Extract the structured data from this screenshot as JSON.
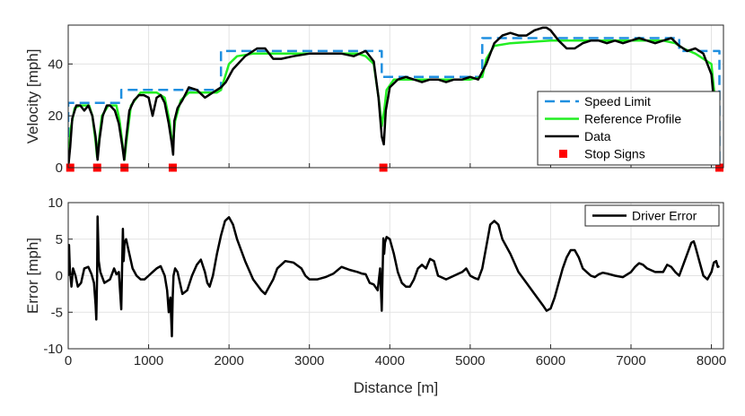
{
  "chart_data": [
    {
      "type": "line",
      "ylabel": "Velocity [mph]",
      "xlabel": "",
      "xlim": [
        0,
        8150
      ],
      "ylim": [
        0,
        55
      ],
      "xticks": [],
      "yticks": [
        0,
        20,
        40
      ],
      "grid": true,
      "legend_position": "bottom-right",
      "legend": [
        "Speed Limit",
        "Reference Profile",
        "Data",
        "Stop Signs"
      ],
      "series": [
        {
          "name": "Speed Limit",
          "color": "#1f8fe0",
          "style": "dashed",
          "x": [
            0,
            0,
            360,
            360,
            660,
            660,
            1300,
            1300,
            1900,
            1900,
            3900,
            3900,
            5150,
            5150,
            7600,
            7600,
            8100,
            8100
          ],
          "y": [
            0,
            25,
            25,
            25,
            25,
            30,
            30,
            30,
            30,
            45,
            45,
            35,
            35,
            50,
            50,
            45,
            45,
            0
          ]
        },
        {
          "name": "Reference Profile",
          "color": "#22ee22",
          "style": "solid",
          "x": [
            0,
            30,
            80,
            150,
            260,
            300,
            340,
            360,
            380,
            420,
            500,
            600,
            640,
            680,
            700,
            720,
            780,
            900,
            1100,
            1200,
            1260,
            1300,
            1330,
            1400,
            1500,
            1700,
            1850,
            1900,
            1950,
            2000,
            2100,
            2300,
            2600,
            3000,
            3400,
            3600,
            3700,
            3800,
            3870,
            3900,
            3930,
            3960,
            4050,
            4300,
            4600,
            5000,
            5150,
            5200,
            5300,
            5500,
            6000,
            6500,
            7000,
            7400,
            7550,
            7650,
            7800,
            8000,
            8050,
            8100
          ],
          "y": [
            0,
            15,
            23,
            24,
            24,
            20,
            10,
            4,
            10,
            20,
            24,
            24,
            18,
            8,
            3,
            9,
            24,
            29,
            29,
            27,
            18,
            8,
            18,
            26,
            29,
            29,
            29,
            30,
            35,
            40,
            43,
            44,
            44,
            44,
            44,
            44,
            43,
            40,
            25,
            16,
            22,
            30,
            34,
            34,
            34,
            34,
            35,
            42,
            47,
            48,
            49,
            49,
            49,
            49,
            48,
            46,
            44,
            40,
            25,
            0
          ]
        },
        {
          "name": "Data",
          "color": "#000000",
          "style": "solid",
          "x": [
            0,
            25,
            50,
            100,
            150,
            200,
            250,
            300,
            340,
            365,
            390,
            430,
            480,
            520,
            580,
            630,
            670,
            695,
            720,
            760,
            820,
            880,
            940,
            1000,
            1050,
            1100,
            1150,
            1200,
            1250,
            1290,
            1305,
            1320,
            1360,
            1420,
            1500,
            1600,
            1700,
            1800,
            1900,
            1960,
            2050,
            2200,
            2350,
            2450,
            2550,
            2650,
            2800,
            3000,
            3200,
            3400,
            3550,
            3700,
            3800,
            3860,
            3900,
            3925,
            3950,
            4000,
            4100,
            4200,
            4300,
            4400,
            4500,
            4600,
            4700,
            4800,
            4900,
            5000,
            5100,
            5200,
            5300,
            5400,
            5500,
            5600,
            5700,
            5800,
            5900,
            5950,
            6000,
            6100,
            6200,
            6300,
            6400,
            6500,
            6600,
            6700,
            6800,
            6900,
            7000,
            7100,
            7200,
            7300,
            7400,
            7500,
            7600,
            7700,
            7800,
            7900,
            8000,
            8050,
            8100
          ],
          "y": [
            0,
            8,
            19,
            24,
            24,
            22,
            24,
            20,
            12,
            3,
            11,
            20,
            24,
            24,
            22,
            17,
            9,
            3,
            11,
            22,
            26,
            28,
            28,
            27,
            20,
            27,
            28,
            25,
            17,
            9,
            5,
            18,
            23,
            26,
            31,
            30,
            27,
            29,
            31,
            33,
            38,
            43,
            46,
            46,
            42,
            42,
            43,
            44,
            44,
            44,
            43,
            45,
            41,
            27,
            12,
            9,
            22,
            31,
            34,
            35,
            34,
            33,
            34,
            34,
            33,
            34,
            34,
            35,
            34,
            40,
            48,
            51,
            52,
            51,
            51,
            53,
            54,
            54,
            53,
            49,
            46,
            46,
            48,
            49,
            49,
            48,
            49,
            48,
            49,
            50,
            49,
            48,
            49,
            50,
            47,
            45,
            46,
            44,
            36,
            20,
            0
          ]
        }
      ],
      "stop_signs": [
        25,
        360,
        700,
        1300,
        3920,
        8100
      ],
      "stop_sign_value": 0
    },
    {
      "type": "line",
      "xlabel": "Distance [m]",
      "ylabel": "Error [mph]",
      "xlim": [
        0,
        8150
      ],
      "ylim": [
        -10,
        10
      ],
      "xticks": [
        0,
        1000,
        2000,
        3000,
        4000,
        5000,
        6000,
        7000,
        8000
      ],
      "yticks": [
        -10,
        -5,
        0,
        5,
        10
      ],
      "grid": true,
      "legend_position": "top-right",
      "legend": [
        "Driver Error"
      ],
      "series": [
        {
          "name": "Driver Error",
          "color": "#000000",
          "style": "solid",
          "x": [
            0,
            10,
            20,
            40,
            60,
            90,
            120,
            160,
            200,
            250,
            290,
            320,
            340,
            350,
            360,
            365,
            380,
            400,
            450,
            520,
            570,
            600,
            630,
            660,
            680,
            690,
            700,
            720,
            760,
            800,
            850,
            900,
            950,
            1000,
            1050,
            1100,
            1150,
            1200,
            1230,
            1250,
            1270,
            1290,
            1300,
            1310,
            1330,
            1360,
            1420,
            1480,
            1540,
            1600,
            1650,
            1700,
            1730,
            1760,
            1800,
            1850,
            1900,
            1950,
            2000,
            2050,
            2100,
            2200,
            2300,
            2400,
            2450,
            2500,
            2550,
            2600,
            2700,
            2800,
            2900,
            2950,
            3000,
            3100,
            3200,
            3300,
            3400,
            3500,
            3600,
            3650,
            3700,
            3750,
            3800,
            3850,
            3880,
            3900,
            3920,
            3930,
            3940,
            3960,
            4000,
            4050,
            4100,
            4150,
            4200,
            4250,
            4300,
            4350,
            4400,
            4450,
            4500,
            4550,
            4600,
            4700,
            4800,
            4900,
            4950,
            5000,
            5050,
            5100,
            5150,
            5200,
            5250,
            5300,
            5350,
            5400,
            5500,
            5600,
            5700,
            5800,
            5900,
            5950,
            6000,
            6050,
            6100,
            6150,
            6200,
            6250,
            6300,
            6350,
            6400,
            6450,
            6500,
            6550,
            6600,
            6650,
            6700,
            6800,
            6900,
            7000,
            7050,
            7100,
            7150,
            7200,
            7300,
            7400,
            7450,
            7500,
            7550,
            7600,
            7650,
            7700,
            7750,
            7780,
            7800,
            7850,
            7900,
            7950,
            8000,
            8030,
            8060,
            8080,
            8100
          ],
          "y": [
            0,
            4.2,
            1,
            -1.5,
            1,
            0,
            -1.5,
            -1,
            1,
            1.2,
            0.2,
            -1,
            -4,
            -6,
            0,
            8.1,
            2,
            0.5,
            -1,
            -0.5,
            1,
            0.2,
            0.5,
            -4.6,
            6.4,
            2,
            4.5,
            5,
            3,
            1,
            0,
            -0.5,
            -0.5,
            0,
            0.5,
            1,
            1.3,
            0,
            -2,
            -5,
            -3,
            -8.3,
            -3,
            0,
            1,
            0.5,
            -2.5,
            -2,
            0,
            1.5,
            2.2,
            0.5,
            -1,
            -1.5,
            0,
            3,
            5.5,
            7.5,
            8,
            7,
            5,
            2,
            -0.5,
            -2,
            -2.5,
            -1.5,
            -0.5,
            1,
            2,
            1.8,
            1,
            0,
            -0.5,
            -0.5,
            -0.2,
            0.3,
            1.2,
            0.8,
            0.5,
            0.3,
            0.2,
            -1,
            -1.2,
            -2,
            1,
            -4.8,
            5.1,
            3,
            4.5,
            5.3,
            5,
            3,
            0.5,
            -1,
            -1.5,
            -1.5,
            -0.5,
            1,
            1.5,
            1,
            2.3,
            2,
            0,
            -0.5,
            0,
            0.5,
            1,
            0,
            -0.3,
            -0.5,
            1,
            4,
            7,
            7.5,
            7,
            5,
            3,
            0.5,
            -1,
            -2.5,
            -4,
            -4.8,
            -4.5,
            -3,
            -1,
            1,
            2.5,
            3.5,
            3.5,
            2.5,
            1,
            0.5,
            0,
            -0.2,
            0.2,
            0.4,
            0.3,
            0,
            -0.2,
            0.5,
            1.2,
            1.7,
            1.5,
            1,
            0.5,
            0.5,
            1.5,
            1.2,
            0.5,
            0,
            1.5,
            3,
            4.5,
            4.7,
            4,
            2,
            0,
            -0.5,
            0.5,
            1.8,
            2,
            1.2,
            1.3
          ]
        }
      ]
    }
  ]
}
